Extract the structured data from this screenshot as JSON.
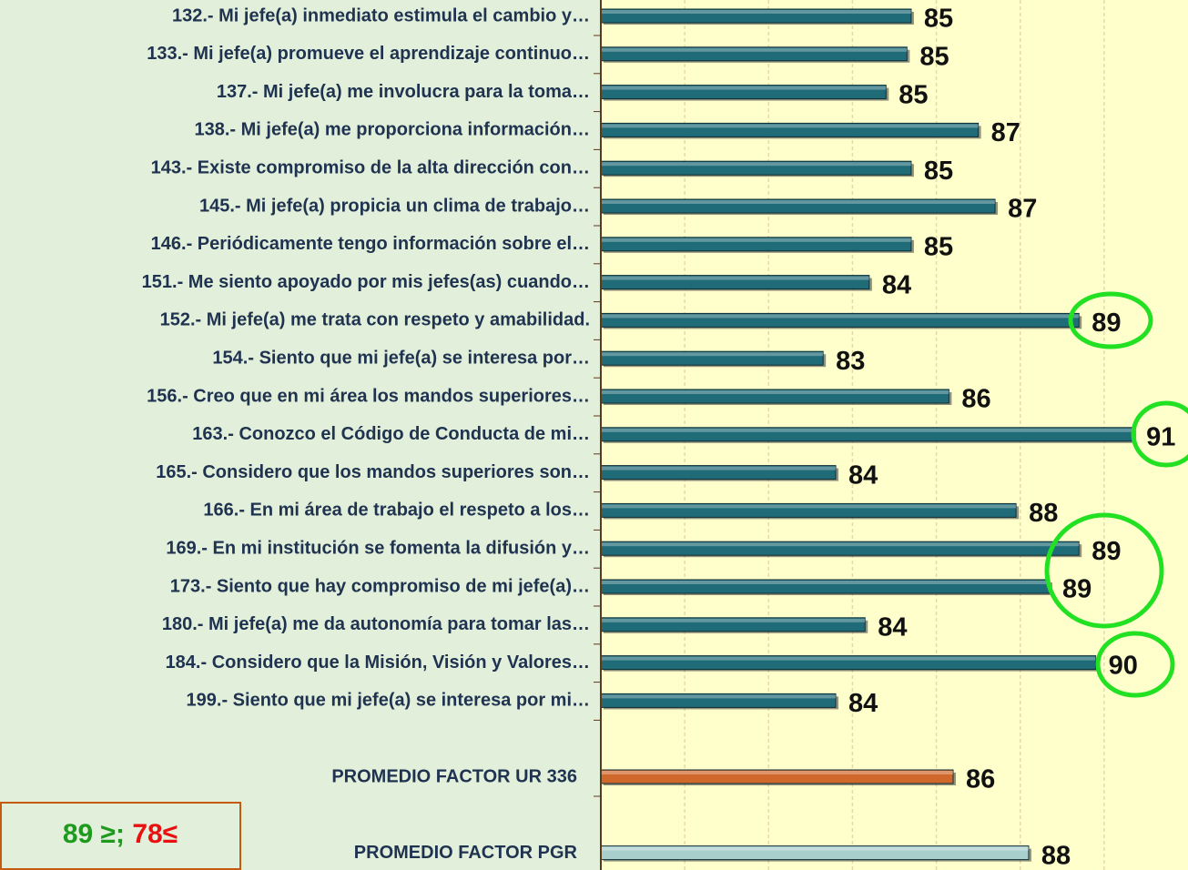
{
  "chart_data": {
    "type": "bar",
    "orientation": "horizontal",
    "categories": [
      "132.- Mi jefe(a) inmediato estimula el cambio y…",
      "133.- Mi jefe(a) promueve el aprendizaje continuo…",
      "137.- Mi jefe(a) me involucra para la toma…",
      "138.- Mi jefe(a) me proporciona información…",
      "143.- Existe compromiso de la alta dirección con…",
      "145.- Mi jefe(a) propicia un clima de trabajo…",
      "146.- Periódicamente tengo información sobre el…",
      "151.- Me siento apoyado por mis jefes(as) cuando…",
      "152.- Mi jefe(a) me trata con respeto y amabilidad.",
      "154.- Siento que mi jefe(a) se interesa por…",
      "156.- Creo que en mi área los mandos superiores…",
      "163.- Conozco el Código de Conducta de mi…",
      "165.- Considero que los mandos superiores son…",
      "166.- En mi área de trabajo el respeto a los…",
      "169.- En mi institución se fomenta la difusión y…",
      "173.- Siento que hay compromiso de mi jefe(a)…",
      "180.- Mi jefe(a) me da autonomía para tomar las…",
      "184.- Considero que la Misión, Visión y Valores…",
      "199.- Siento que mi jefe(a) se interesa por mi…",
      "PROMEDIO FACTOR UR 336",
      "PROMEDIO FACTOR PGR"
    ],
    "values": [
      85.4,
      85.3,
      84.8,
      87.0,
      85.4,
      87.4,
      85.4,
      84.4,
      89.4,
      83.3,
      86.3,
      90.7,
      83.6,
      87.9,
      89.4,
      88.7,
      84.3,
      89.8,
      83.6,
      86.4,
      88.2
    ],
    "value_labels": [
      "85",
      "85",
      "85",
      "87",
      "85",
      "87",
      "85",
      "84",
      "89",
      "83",
      "86",
      "91",
      "84",
      "88",
      "89",
      "89",
      "84",
      "90",
      "84",
      "86",
      "88"
    ],
    "colors": [
      "#1f6b78",
      "#1f6b78",
      "#1f6b78",
      "#1f6b78",
      "#1f6b78",
      "#1f6b78",
      "#1f6b78",
      "#1f6b78",
      "#1f6b78",
      "#1f6b78",
      "#1f6b78",
      "#1f6b78",
      "#1f6b78",
      "#1f6b78",
      "#1f6b78",
      "#1f6b78",
      "#1f6b78",
      "#1f6b78",
      "#1f6b78",
      "#d0682c",
      "#a8cfcc"
    ],
    "xlim": [
      78,
      92
    ],
    "xticks": [
      80,
      82,
      84,
      86,
      88,
      90
    ],
    "grid": true,
    "annotations": [
      {
        "text": "89 ≥;",
        "color": "#1e9a1e"
      },
      {
        "text": "78≤",
        "color": "#e81010"
      }
    ]
  }
}
